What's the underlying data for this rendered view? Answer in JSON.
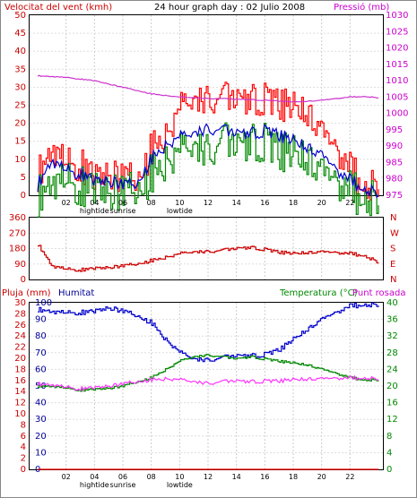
{
  "header": {
    "wind_label": "Velocitat del vent (kmh)",
    "title": "24 hour graph day : 02 Julio 2008",
    "pressure_label": "Pressió (mb)"
  },
  "panel3": {
    "rain_label": "Pluja (mm)",
    "humidity_label": "Humitat",
    "temp_label": "Temperatura (°C)",
    "dew_label": "Punt rosada"
  },
  "x_ticks": [
    "02",
    "04",
    "06",
    "08",
    "10",
    "12",
    "14",
    "16",
    "18",
    "20",
    "22"
  ],
  "events": [
    {
      "label": "hightide",
      "x_index": 1
    },
    {
      "label": "sunrise",
      "x_index": 2
    },
    {
      "label": "lowtide",
      "x_index": 4
    }
  ],
  "colors": {
    "wind_axis": "#cc0000",
    "pressure_axis": "#cc00cc",
    "humidity_axis": "#000099",
    "temp_axis": "#008800",
    "gust": "#ff0000",
    "wind_avg": "#0000cc",
    "wind_min": "#008800",
    "pressure": "#cc33cc",
    "direction": "#cc0000",
    "humidity": "#0000cc",
    "temperature": "#008800",
    "dewpoint": "#ff33ff",
    "rain": "#ff0000"
  },
  "chart_data": [
    {
      "type": "line",
      "title": "24 hour graph day : 02 Julio 2008",
      "xlabel": "",
      "ylabel": "Velocitat del vent (kmh)",
      "y2label": "Pressió (mb)",
      "ylim": [
        0,
        50
      ],
      "yticks": [
        0,
        5,
        10,
        15,
        20,
        25,
        30,
        35,
        40,
        45,
        50
      ],
      "y2lim": [
        975,
        1030
      ],
      "y2ticks": [
        975,
        980,
        985,
        990,
        995,
        1000,
        1005,
        1010,
        1015,
        1020,
        1025,
        1030
      ],
      "x": [
        0,
        1,
        2,
        3,
        4,
        5,
        6,
        7,
        8,
        9,
        10,
        11,
        12,
        13,
        14,
        15,
        16,
        17,
        18,
        19,
        20,
        21,
        22,
        23,
        24
      ],
      "series": [
        {
          "name": "gust",
          "values": [
            6,
            14,
            9,
            8,
            5,
            6,
            5,
            4,
            13,
            17,
            24,
            26,
            28,
            27,
            26,
            26,
            27,
            26,
            24,
            22,
            17,
            12,
            7,
            3,
            4
          ]
        },
        {
          "name": "wind_avg",
          "values": [
            3,
            10,
            7,
            6,
            4,
            4,
            3,
            3,
            10,
            14,
            16,
            17,
            19,
            18,
            17,
            17,
            18,
            17,
            15,
            13,
            11,
            7,
            4,
            2,
            1
          ]
        },
        {
          "name": "wind_min",
          "values": [
            0,
            5,
            4,
            2,
            2,
            1,
            1,
            1,
            6,
            10,
            12,
            13,
            14,
            15,
            13,
            14,
            15,
            13,
            11,
            9,
            6,
            3,
            1,
            0,
            0
          ]
        },
        {
          "name": "pressure",
          "axis": "y2",
          "values": [
            1011.5,
            1011.3,
            1011,
            1010.5,
            1010,
            1009,
            1008,
            1007,
            1006,
            1005.5,
            1005,
            1004.8,
            1004.6,
            1004.5,
            1004.3,
            1004.2,
            1004,
            1003.8,
            1003.5,
            1003.7,
            1004,
            1004.5,
            1005,
            1005.2,
            1004.8
          ]
        }
      ]
    },
    {
      "type": "line",
      "ylabel": "",
      "y2label": "N W S E N",
      "ylim": [
        0,
        360
      ],
      "yticks": [
        0,
        90,
        180,
        270,
        360
      ],
      "y2ticks": [
        "N",
        "W",
        "S",
        "E",
        "N"
      ],
      "x": [
        0,
        1,
        2,
        3,
        4,
        5,
        6,
        7,
        8,
        9,
        10,
        11,
        12,
        13,
        14,
        15,
        16,
        17,
        18,
        19,
        20,
        21,
        22,
        23,
        24
      ],
      "series": [
        {
          "name": "direction",
          "values": [
            205,
            80,
            60,
            55,
            65,
            70,
            80,
            90,
            110,
            130,
            150,
            160,
            165,
            170,
            180,
            185,
            175,
            160,
            150,
            155,
            160,
            155,
            150,
            140,
            100
          ]
        }
      ]
    },
    {
      "type": "line",
      "ylabel": "Pluja (mm)",
      "ylim": [
        0,
        30
      ],
      "yticks": [
        0,
        2,
        4,
        6,
        8,
        10,
        12,
        14,
        16,
        18,
        20,
        22,
        24,
        26,
        28,
        30
      ],
      "y_hum_lim": [
        0,
        100
      ],
      "y_hum_ticks": [
        0,
        10,
        20,
        30,
        40,
        50,
        60,
        70,
        80,
        90,
        100
      ],
      "y2label": "Temperatura (°C)",
      "y2lim": [
        0,
        40
      ],
      "y2ticks": [
        0,
        4,
        8,
        12,
        16,
        20,
        24,
        28,
        32,
        36,
        40
      ],
      "x": [
        0,
        1,
        2,
        3,
        4,
        5,
        6,
        7,
        8,
        9,
        10,
        11,
        12,
        13,
        14,
        15,
        16,
        17,
        18,
        19,
        20,
        21,
        22,
        23,
        24
      ],
      "series": [
        {
          "name": "rain",
          "values": [
            0,
            0,
            0,
            0,
            0,
            0,
            0,
            0,
            0,
            0,
            0,
            0,
            0,
            0,
            0,
            0,
            0,
            0,
            0,
            0,
            0,
            0,
            0,
            0,
            0
          ]
        },
        {
          "name": "humidity",
          "axis": "hum",
          "values": [
            96,
            95,
            94,
            94,
            95,
            97,
            95,
            92,
            88,
            78,
            70,
            66,
            66,
            67,
            68,
            68,
            69,
            72,
            78,
            84,
            90,
            94,
            98,
            99,
            99
          ]
        },
        {
          "name": "temperature",
          "axis": "y2",
          "values": [
            20,
            20,
            19.5,
            19,
            19.2,
            19.5,
            20,
            21,
            22,
            24,
            26,
            27,
            27.5,
            27,
            26.5,
            27,
            26.5,
            26,
            25.5,
            25,
            24,
            23,
            22,
            21.5,
            21.5
          ]
        },
        {
          "name": "dewpoint",
          "axis": "y2",
          "values": [
            20.5,
            20.4,
            19.7,
            19.3,
            19.6,
            20,
            20.5,
            21,
            21.5,
            21.8,
            21.5,
            21,
            20.8,
            21,
            21.2,
            21,
            21.2,
            21.3,
            21.5,
            21.6,
            21.7,
            21.8,
            21.9,
            22,
            21.8
          ]
        }
      ]
    }
  ]
}
